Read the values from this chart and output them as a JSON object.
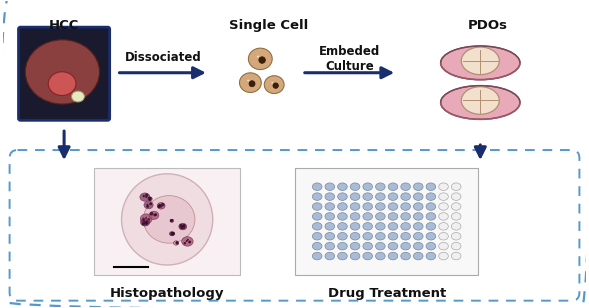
{
  "bg_color": "#ffffff",
  "outer_box_color": "#5599cc",
  "inner_box_color": "#5599cc",
  "arrow_color": "#1a2e6e",
  "text_color": "#111111",
  "labels": {
    "hcc": "HCC",
    "single_cell": "Single Cell",
    "embeded": "Embeded\nCulture",
    "pdos": "PDOs",
    "dissociated": "Dissociated",
    "histopath": "Histopathology",
    "drug": "Drug Treatment"
  },
  "label_fontsize": 9.5,
  "plate_color_fill": "#e8aab8",
  "plate_organoid_color": "#f2e0cc",
  "cell_body_color": "#d4a87a",
  "cell_nucleus_color": "#7a5020",
  "well_filled_color": "#a8bcd8",
  "well_empty_color": "#f0f0f0",
  "liver_bg": "#1a1a2e",
  "liver_color": "#8B4040",
  "tumor_color": "#cc5555",
  "tumor_white": "#e8e8c0"
}
